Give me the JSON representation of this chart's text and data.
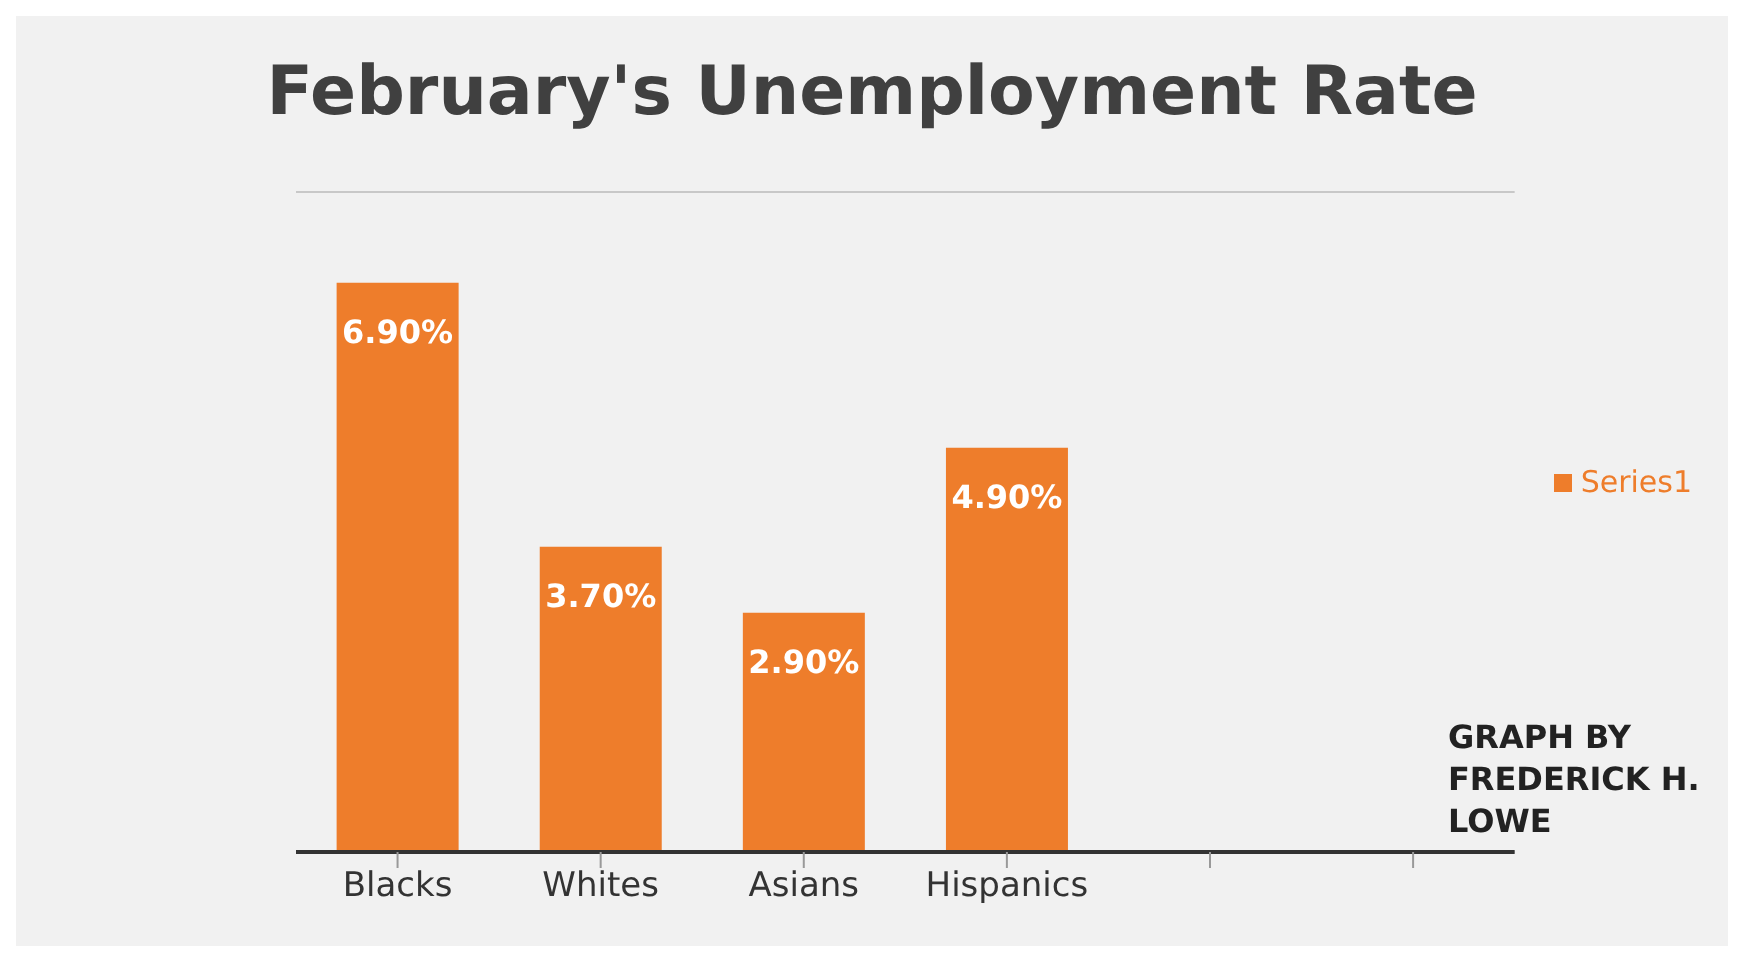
{
  "chart_data": {
    "type": "bar",
    "title": "February's Unemployment Rate",
    "categories": [
      "Blacks",
      "Whites",
      "Asians",
      "Hispanics",
      null,
      null
    ],
    "series": [
      {
        "name": "Series1",
        "color": "#ee7d2b",
        "values": [
          6.9,
          3.7,
          2.9,
          4.9,
          null,
          null
        ],
        "value_labels": [
          "6.90%",
          "3.70%",
          "2.90%",
          "4.90%",
          null,
          null
        ]
      }
    ],
    "ylim": [
      0,
      8
    ],
    "tick_labels": "x",
    "grid": "y",
    "legend": "right",
    "annotations": [
      "GRAPH BY FREDERICK H. LOWE"
    ]
  }
}
